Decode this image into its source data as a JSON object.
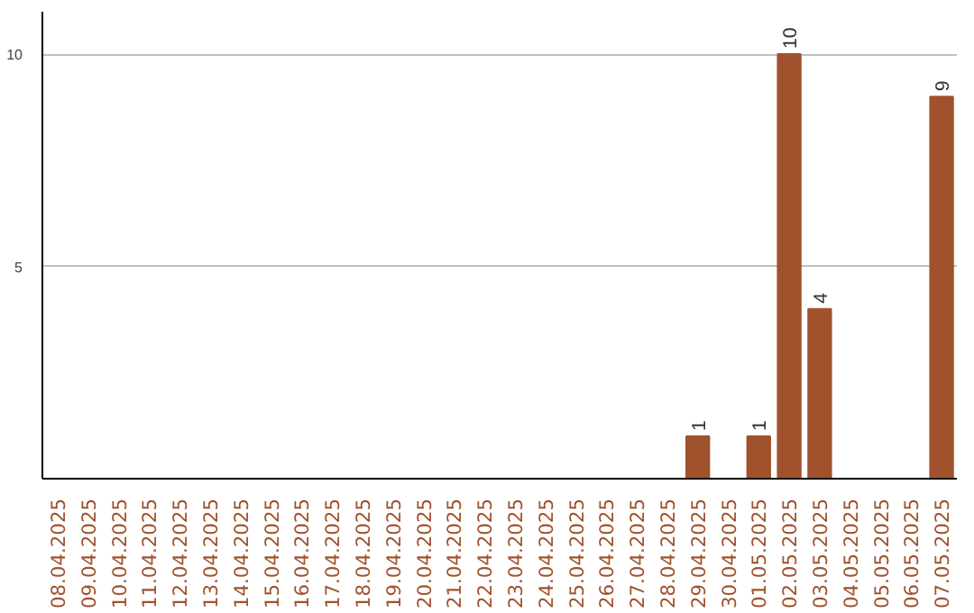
{
  "chart_data": {
    "type": "bar",
    "categories": [
      "08.04.2025",
      "09.04.2025",
      "10.04.2025",
      "11.04.2025",
      "12.04.2025",
      "13.04.2025",
      "14.04.2025",
      "15.04.2025",
      "16.04.2025",
      "17.04.2025",
      "18.04.2025",
      "19.04.2025",
      "20.04.2025",
      "21.04.2025",
      "22.04.2025",
      "23.04.2025",
      "24.04.2025",
      "25.04.2025",
      "26.04.2025",
      "27.04.2025",
      "28.04.2025",
      "29.04.2025",
      "30.04.2025",
      "01.05.2025",
      "02.05.2025",
      "03.05.2025",
      "04.05.2025",
      "05.05.2025",
      "06.05.2025",
      "07.05.2025"
    ],
    "values": [
      0,
      0,
      0,
      0,
      0,
      0,
      0,
      0,
      0,
      0,
      0,
      0,
      0,
      0,
      0,
      0,
      0,
      0,
      0,
      0,
      0,
      1,
      0,
      1,
      10,
      4,
      0,
      0,
      0,
      9
    ],
    "value_labels": [
      null,
      null,
      null,
      null,
      null,
      null,
      null,
      null,
      null,
      null,
      null,
      null,
      null,
      null,
      null,
      null,
      null,
      null,
      null,
      null,
      null,
      "1",
      null,
      "1",
      "10",
      "4",
      null,
      null,
      null,
      "9"
    ],
    "color": "#a0522d",
    "ylim": [
      0,
      11
    ],
    "yticks": [
      5,
      10
    ],
    "grid": "y"
  }
}
